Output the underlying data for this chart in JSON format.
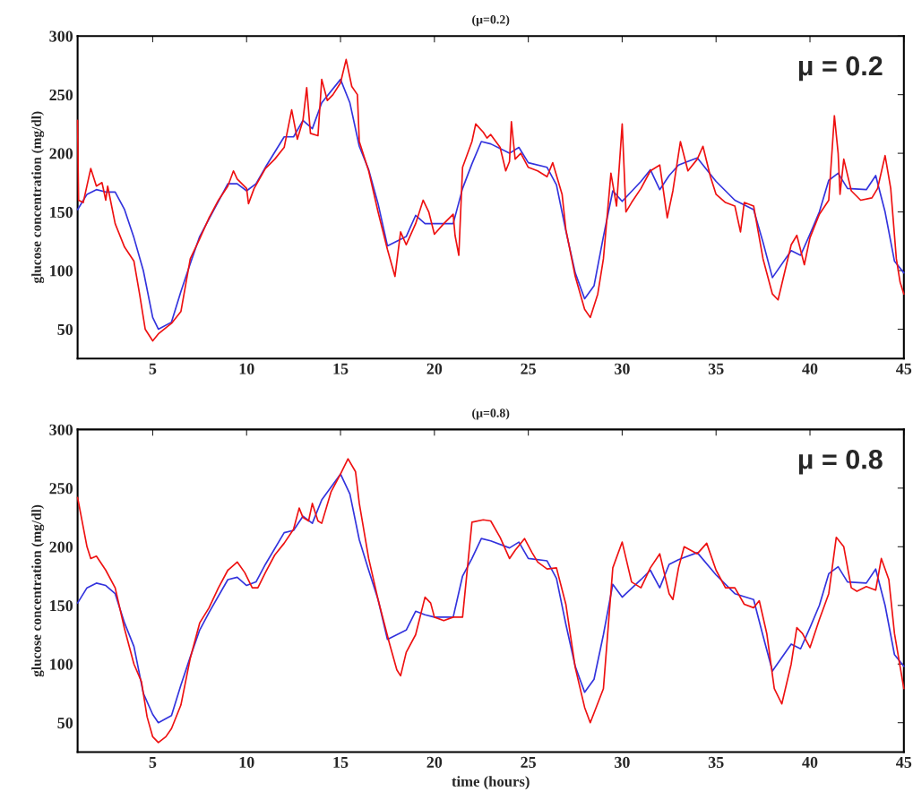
{
  "chart_data": [
    {
      "type": "line",
      "title": "(μ=0.2)",
      "ylabel": "glucose concentration (mg/dl)",
      "annotations": [
        "μ = 0.2"
      ],
      "xlim": [
        1,
        45
      ],
      "ylim": [
        25,
        300
      ],
      "xticks": [
        5,
        10,
        15,
        20,
        25,
        30,
        35,
        40,
        45
      ],
      "yticks": [
        50,
        100,
        150,
        200,
        250,
        300
      ],
      "grid": false,
      "series": [
        {
          "color": "#ee1111",
          "x": [
            1,
            1.05,
            1.3,
            1.7,
            2,
            2.3,
            2.5,
            2.6,
            3,
            3.5,
            4,
            4.3,
            4.6,
            5,
            5.3,
            6,
            6.5,
            7,
            7.5,
            8,
            8.5,
            9,
            9.3,
            9.5,
            10,
            10.1,
            10.4,
            11,
            11.5,
            12,
            12.4,
            12.7,
            13.0,
            13.2,
            13.4,
            13.8,
            14,
            14.3,
            14.6,
            15,
            15.3,
            15.6,
            15.9,
            16,
            16.5,
            17,
            17.5,
            17.9,
            18.2,
            18.5,
            19,
            19.4,
            19.7,
            20,
            20.5,
            21,
            21.1,
            21.3,
            21.5,
            22,
            22.2,
            22.6,
            22.8,
            23,
            23.5,
            23.8,
            24,
            24.1,
            24.3,
            24.6,
            25,
            25.5,
            26,
            26.3,
            26.8,
            27,
            27.5,
            28,
            28.3,
            28.7,
            29,
            29.4,
            29.7,
            30,
            30.2,
            30.5,
            31,
            31.5,
            32,
            32.4,
            32.7,
            33.1,
            33.5,
            34,
            34.3,
            34.7,
            35,
            35.5,
            36,
            36.3,
            36.5,
            37,
            37.5,
            38,
            38.3,
            39,
            39.3,
            39.7,
            40,
            40.5,
            41,
            41.3,
            41.5,
            41.6,
            41.8,
            42.2,
            42.7,
            43.3,
            43.6,
            44,
            44.3,
            44.6,
            44.8,
            45
          ],
          "values": [
            228,
            160,
            158,
            187,
            172,
            175,
            160,
            172,
            140,
            120,
            108,
            80,
            50,
            40,
            46,
            55,
            65,
            110,
            127,
            145,
            160,
            172,
            185,
            178,
            170,
            157,
            170,
            187,
            195,
            205,
            237,
            212,
            228,
            256,
            217,
            215,
            263,
            245,
            250,
            260,
            280,
            257,
            250,
            210,
            185,
            150,
            118,
            95,
            133,
            122,
            140,
            160,
            150,
            131,
            140,
            148,
            130,
            113,
            188,
            210,
            225,
            218,
            213,
            216,
            205,
            185,
            193,
            227,
            195,
            200,
            188,
            185,
            180,
            192,
            165,
            135,
            95,
            67,
            60,
            80,
            110,
            183,
            155,
            225,
            150,
            158,
            170,
            185,
            190,
            145,
            168,
            210,
            185,
            195,
            206,
            180,
            165,
            158,
            155,
            133,
            158,
            155,
            110,
            80,
            75,
            122,
            130,
            105,
            128,
            148,
            160,
            232,
            200,
            165,
            195,
            168,
            160,
            162,
            170,
            198,
            170,
            110,
            90,
            80
          ]
        },
        {
          "color": "#3333dd",
          "x": [
            1,
            1.5,
            2,
            2.5,
            3,
            3.5,
            4,
            4.5,
            5,
            5.3,
            6,
            6.5,
            7,
            7.5,
            8,
            9,
            9.5,
            10,
            10.5,
            11,
            12,
            12.5,
            13,
            13.5,
            14,
            15,
            15.5,
            16,
            16.5,
            17,
            17.5,
            18,
            18.5,
            19,
            19.5,
            20,
            21,
            21.5,
            22,
            22.5,
            23,
            24,
            24.5,
            25,
            26,
            26.5,
            27,
            27.5,
            28,
            28.5,
            29,
            29.5,
            30,
            31,
            31.5,
            32,
            32.5,
            33,
            34,
            35,
            36,
            37,
            37.5,
            38,
            39,
            39.5,
            40,
            40.5,
            41,
            41.5,
            42,
            43,
            43.5,
            44,
            44.5,
            45
          ],
          "values": [
            152,
            165,
            169,
            167,
            167,
            152,
            128,
            100,
            60,
            50,
            56,
            82,
            106,
            129,
            144,
            174,
            174,
            168,
            174,
            188,
            214,
            214,
            228,
            221,
            243,
            263,
            243,
            206,
            186,
            157,
            121,
            125,
            129,
            147,
            140,
            140,
            140,
            170,
            191,
            210,
            208,
            200,
            205,
            192,
            188,
            173,
            134,
            98,
            76,
            87,
            129,
            168,
            159,
            176,
            186,
            169,
            181,
            190,
            196,
            176,
            160,
            152,
            124,
            94,
            117,
            113,
            131,
            150,
            177,
            183,
            170,
            169,
            181,
            150,
            108,
            98
          ]
        }
      ]
    },
    {
      "type": "line",
      "title": "(μ=0.8)",
      "xlabel": "time (hours)",
      "ylabel": "glucose concentration (mg/dl)",
      "annotations": [
        "μ = 0.8"
      ],
      "xlim": [
        1,
        45
      ],
      "ylim": [
        25,
        300
      ],
      "xticks": [
        5,
        10,
        15,
        20,
        25,
        30,
        35,
        40,
        45
      ],
      "yticks": [
        50,
        100,
        150,
        200,
        250,
        300
      ],
      "grid": false,
      "series": [
        {
          "color": "#ee1111",
          "x": [
            1,
            1.5,
            1.7,
            2,
            2.5,
            3,
            3.5,
            4,
            4.4,
            4.7,
            5,
            5.3,
            5.7,
            6,
            6.5,
            7,
            7.5,
            8,
            8.5,
            9,
            9.5,
            9.9,
            10.3,
            10.6,
            11,
            11.5,
            12,
            12.5,
            12.8,
            13,
            13.3,
            13.5,
            13.8,
            14,
            14.5,
            15,
            15.4,
            15.8,
            16,
            16.5,
            17,
            17.6,
            18,
            18.2,
            18.5,
            19,
            19.5,
            19.8,
            20,
            20.5,
            21,
            21.5,
            22,
            22.6,
            23,
            23.5,
            24,
            24.3,
            24.8,
            25.2,
            25.5,
            26,
            26.5,
            27,
            27.5,
            28,
            28.3,
            29,
            29.5,
            30,
            30.5,
            31,
            31.5,
            32,
            32.5,
            32.7,
            33,
            33.3,
            34,
            34.5,
            35,
            35.5,
            36,
            36.5,
            37,
            37.3,
            37.7,
            38.1,
            38.5,
            39,
            39.3,
            39.6,
            40,
            40.5,
            41,
            41.4,
            41.8,
            42.2,
            42.5,
            43,
            43.5,
            43.8,
            44.2,
            44.5,
            45
          ],
          "values": [
            242,
            200,
            190,
            192,
            180,
            165,
            130,
            100,
            85,
            55,
            38,
            33,
            38,
            45,
            65,
            105,
            135,
            148,
            165,
            180,
            187,
            178,
            165,
            165,
            178,
            193,
            203,
            215,
            233,
            225,
            222,
            237,
            222,
            220,
            247,
            262,
            275,
            264,
            237,
            190,
            155,
            118,
            95,
            90,
            110,
            125,
            157,
            152,
            140,
            137,
            140,
            140,
            221,
            223,
            222,
            208,
            190,
            197,
            207,
            195,
            187,
            181,
            182,
            151,
            97,
            63,
            50,
            79,
            182,
            204,
            170,
            165,
            182,
            194,
            160,
            155,
            182,
            200,
            194,
            203,
            180,
            165,
            165,
            151,
            148,
            154,
            126,
            79,
            66,
            100,
            131,
            126,
            114,
            138,
            160,
            208,
            200,
            165,
            162,
            166,
            163,
            190,
            172,
            126,
            79
          ]
        },
        {
          "color": "#3333dd",
          "x": [
            1,
            1.5,
            2,
            2.5,
            3,
            3.5,
            4,
            4.5,
            5,
            5.3,
            6,
            6.5,
            7,
            7.5,
            8,
            9,
            9.5,
            10,
            10.5,
            11,
            12,
            12.5,
            13,
            13.5,
            14,
            15,
            15.5,
            16,
            16.5,
            17,
            17.5,
            18,
            18.5,
            19,
            19.5,
            20,
            21,
            21.5,
            22,
            22.5,
            23,
            24,
            24.5,
            25,
            26,
            26.5,
            27,
            27.5,
            28,
            28.5,
            29,
            29.5,
            30,
            31,
            31.5,
            32,
            32.5,
            33,
            34,
            35,
            36,
            37,
            37.5,
            38,
            39,
            39.5,
            40,
            40.5,
            41,
            41.5,
            42,
            43,
            43.5,
            44,
            44.5,
            45
          ],
          "values": [
            152,
            165,
            169,
            167,
            160,
            135,
            115,
            75,
            57,
            50,
            56,
            82,
            106,
            129,
            144,
            172,
            174,
            167,
            170,
            185,
            212,
            214,
            226,
            220,
            240,
            262,
            245,
            206,
            180,
            155,
            121,
            125,
            129,
            145,
            142,
            140,
            140,
            175,
            190,
            207,
            205,
            199,
            204,
            190,
            188,
            173,
            134,
            98,
            76,
            87,
            125,
            168,
            157,
            172,
            180,
            165,
            185,
            189,
            195,
            176,
            160,
            155,
            124,
            94,
            117,
            113,
            131,
            150,
            177,
            183,
            170,
            169,
            181,
            150,
            108,
            98
          ]
        }
      ]
    }
  ]
}
